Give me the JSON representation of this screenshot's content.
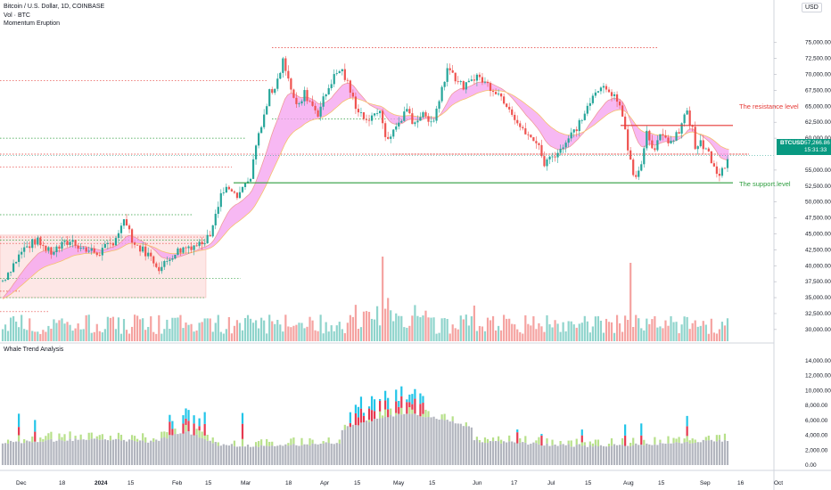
{
  "header": {
    "symbol_line": "Bitcoin / U.S. Dollar, 1D, COINBASE",
    "volume_line": "Vol · BTC",
    "indicator_line": "Momentum Eruption",
    "currency": "USD",
    "subpanel_title": "Whale Trend Analysis"
  },
  "price_tag": {
    "symbol": "BTCUSD",
    "value": "57,266.86",
    "countdown": "15:31:33"
  },
  "annotations": {
    "resistance": "The resistance level",
    "support": "The support level"
  },
  "colors": {
    "up": "#26a69a",
    "down": "#ef5350",
    "accent": "#089981",
    "resistance": "#e53935",
    "support": "#2e9e3f",
    "fill": "#f4a0ef",
    "whale_gray": "#b2b5be",
    "whale_red": "#e53950",
    "whale_cyan": "#22c5e8",
    "whale_green": "#b7e08a"
  },
  "chart_data": [
    {
      "type": "candlestick",
      "title": "Bitcoin / U.S. Dollar, 1D, COINBASE",
      "x_ticks": [
        "Dec",
        "18",
        "2024",
        "15",
        "Feb",
        "15",
        "Mar",
        "18",
        "Apr",
        "15",
        "May",
        "15",
        "Jun",
        "17",
        "Jul",
        "15",
        "Aug",
        "15",
        "Sep",
        "16",
        "Oct"
      ],
      "y_ticks": [
        "75,000.00",
        "72,500.00",
        "70,000.00",
        "67,500.00",
        "65,000.00",
        "62,500.00",
        "60,000.00",
        "55,000.00",
        "52,500.00",
        "50,000.00",
        "47,500.00",
        "45,000.00",
        "42,500.00",
        "40,000.00",
        "37,500.00",
        "35,000.00",
        "32,500.00",
        "30,000.00"
      ],
      "y_range": [
        28500,
        76500
      ],
      "close_path": [
        [
          0,
          37700
        ],
        [
          15,
          42500
        ],
        [
          25,
          44000
        ],
        [
          34,
          42000
        ],
        [
          50,
          44000
        ],
        [
          60,
          42500
        ],
        [
          70,
          42000
        ],
        [
          80,
          43500
        ],
        [
          90,
          47000
        ],
        [
          95,
          43500
        ],
        [
          105,
          42000
        ],
        [
          115,
          39500
        ],
        [
          125,
          42000
        ],
        [
          135,
          43000
        ],
        [
          145,
          43500
        ],
        [
          150,
          44500
        ],
        [
          155,
          48000
        ],
        [
          160,
          51500
        ],
        [
          165,
          52000
        ],
        [
          170,
          50500
        ],
        [
          180,
          53000
        ],
        [
          185,
          59000
        ],
        [
          190,
          62500
        ],
        [
          195,
          67000
        ],
        [
          200,
          68500
        ],
        [
          205,
          72500
        ],
        [
          210,
          68000
        ],
        [
          215,
          64500
        ],
        [
          220,
          67000
        ],
        [
          230,
          64000
        ],
        [
          240,
          69000
        ],
        [
          247,
          71000
        ],
        [
          252,
          68500
        ],
        [
          257,
          65500
        ],
        [
          265,
          63000
        ],
        [
          275,
          64000
        ],
        [
          280,
          59500
        ],
        [
          285,
          61000
        ],
        [
          290,
          63000
        ],
        [
          295,
          64000
        ],
        [
          300,
          62500
        ],
        [
          305,
          63500
        ],
        [
          315,
          63000
        ],
        [
          320,
          67000
        ],
        [
          325,
          71000
        ],
        [
          335,
          68000
        ],
        [
          340,
          68500
        ],
        [
          345,
          70000
        ],
        [
          350,
          69000
        ],
        [
          360,
          67500
        ],
        [
          370,
          65000
        ],
        [
          380,
          61000
        ],
        [
          385,
          60500
        ],
        [
          390,
          59000
        ],
        [
          395,
          56000
        ],
        [
          400,
          57000
        ],
        [
          405,
          58000
        ],
        [
          410,
          59000
        ],
        [
          420,
          62000
        ],
        [
          430,
          66000
        ],
        [
          440,
          68500
        ],
        [
          445,
          67000
        ],
        [
          450,
          65500
        ],
        [
          460,
          54000
        ],
        [
          465,
          55500
        ],
        [
          470,
          61000
        ],
        [
          475,
          58500
        ],
        [
          480,
          60000
        ],
        [
          490,
          59500
        ],
        [
          495,
          61500
        ],
        [
          500,
          64500
        ],
        [
          505,
          59000
        ],
        [
          510,
          59000
        ],
        [
          515,
          57500
        ],
        [
          522,
          53500
        ],
        [
          530,
          57266
        ]
      ],
      "last_price": "57,266.86",
      "resistance_level": 62000,
      "support_level": 53000,
      "reference_lines": {
        "red_dotted": [
          74200,
          69000,
          57500,
          55500,
          44500,
          43500,
          36000,
          32800
        ],
        "green_dotted": [
          63000,
          60000,
          48000,
          44000,
          38000,
          35000
        ]
      }
    },
    {
      "type": "bar",
      "title": "Vol · BTC",
      "note": "daily volume histogram under price"
    },
    {
      "type": "bar",
      "title": "Whale Trend Analysis",
      "y_ticks": [
        "14,000.00",
        "12,000.00",
        "10,000.00",
        "8,000.00",
        "6,000.00",
        "4,000.00",
        "2,000.00",
        "0.00"
      ],
      "y_range": [
        0,
        14000
      ],
      "series": [
        {
          "name": "",
          "color": "#b2b5be"
        },
        {
          "name": "",
          "color": "#b7e08a"
        },
        {
          "name": "",
          "color": "#e53950"
        },
        {
          "name": "",
          "color": "#22c5e8"
        }
      ]
    }
  ]
}
